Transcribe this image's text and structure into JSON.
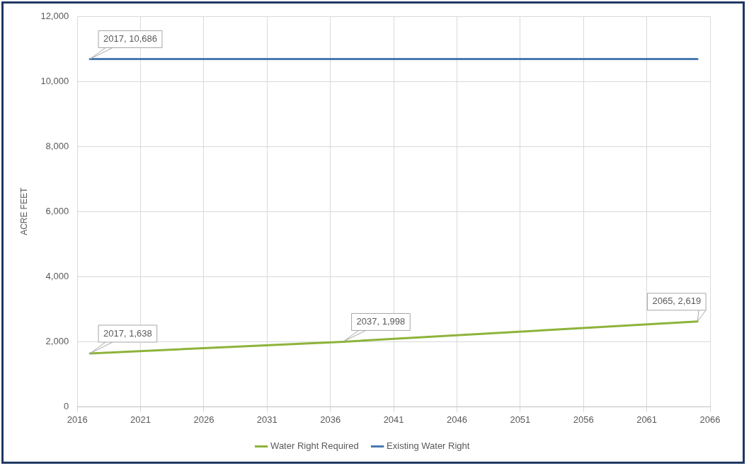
{
  "chart_data": {
    "type": "line",
    "ylabel": "ACRE FEET",
    "xlim": [
      2016,
      2066
    ],
    "xticks": [
      2016,
      2021,
      2026,
      2031,
      2036,
      2041,
      2046,
      2051,
      2056,
      2061,
      2066
    ],
    "ylim": [
      0,
      12000
    ],
    "yticks": [
      0,
      {
        "value": 2000,
        "label": "2,000"
      },
      {
        "value": 4000,
        "label": "4,000"
      },
      {
        "value": 6000,
        "label": "6,000"
      },
      {
        "value": 8000,
        "label": "8,000"
      },
      {
        "value": 10000,
        "label": "10,000"
      },
      {
        "value": 12000,
        "label": "12,000"
      }
    ],
    "series": [
      {
        "name": "Water Right Required",
        "color": "#8db33a",
        "x": [
          2017,
          2037,
          2065
        ],
        "values": [
          1638,
          1998,
          2619
        ]
      },
      {
        "name": "Existing Water Right",
        "color": "#4a78b0",
        "x": [
          2017,
          2065
        ],
        "values": [
          10686,
          10686
        ]
      }
    ],
    "annotations": [
      {
        "text": "2017, 10,686",
        "x": 2017,
        "y": 10686
      },
      {
        "text": "2017, 1,638",
        "x": 2017,
        "y": 1638
      },
      {
        "text": "2037, 1,998",
        "x": 2037,
        "y": 1998
      },
      {
        "text": "2065, 2,619",
        "x": 2065,
        "y": 2619
      }
    ],
    "grid": true,
    "legend": "bottom",
    "marker": "none",
    "line_style": "solid"
  }
}
